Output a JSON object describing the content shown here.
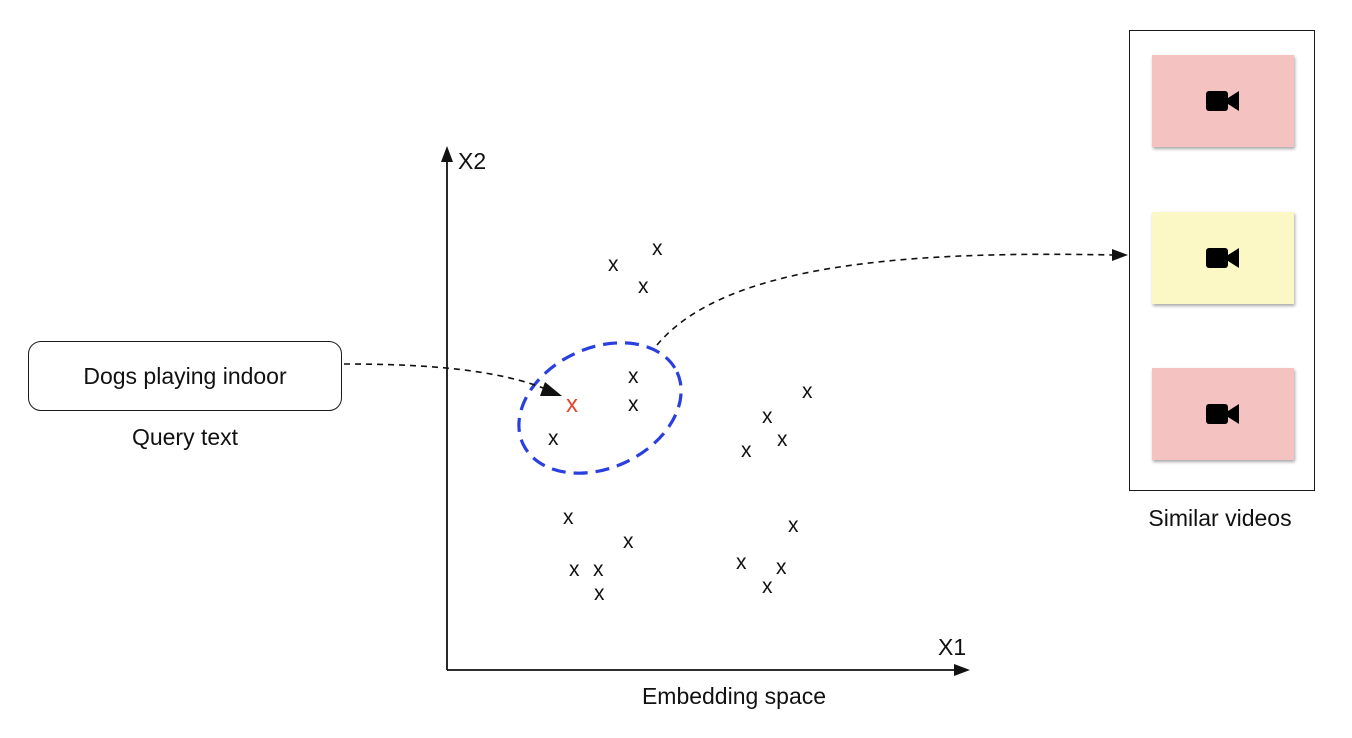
{
  "query": {
    "text": "Dogs playing indoor",
    "caption": "Query text"
  },
  "embedding": {
    "caption": "Embedding space",
    "x_axis_label": "X1",
    "y_axis_label": "X2",
    "point_marker": "x",
    "query_marker": "x",
    "query_marker_color": "#e8452c",
    "neighborhood_color": "#2a3fe0"
  },
  "results": {
    "caption": "Similar videos",
    "videos": [
      {
        "icon": "video-camera-icon",
        "color": "#f3c2c1"
      },
      {
        "icon": "video-camera-icon",
        "color": "#fbf8c6"
      },
      {
        "icon": "video-camera-icon",
        "color": "#f3c2c1"
      }
    ]
  }
}
